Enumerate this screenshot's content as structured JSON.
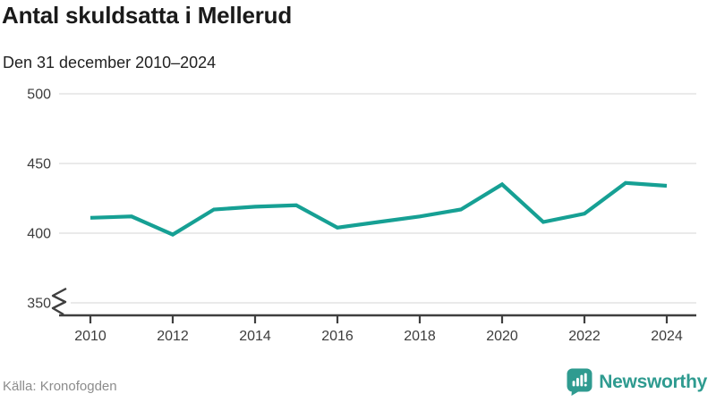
{
  "header": {
    "title": "Antal skuldsatta i Mellerud",
    "subtitle": "Den 31 december 2010–2024"
  },
  "chart_data": {
    "type": "line",
    "title": "Antal skuldsatta i Mellerud",
    "subtitle": "Den 31 december 2010–2024",
    "x": [
      2010,
      2011,
      2012,
      2013,
      2014,
      2015,
      2016,
      2017,
      2018,
      2019,
      2020,
      2021,
      2022,
      2023,
      2024
    ],
    "series": [
      {
        "name": "Antal skuldsatta",
        "values": [
          411,
          412,
          399,
          417,
          419,
          420,
          404,
          408,
          412,
          417,
          435,
          408,
          414,
          436,
          434
        ]
      }
    ],
    "xlabel": "",
    "ylabel": "",
    "ylim": [
      350,
      500
    ],
    "yticks": [
      350,
      400,
      450,
      500
    ],
    "xticks": [
      2010,
      2012,
      2014,
      2016,
      2018,
      2020,
      2022,
      2024
    ],
    "grid": true,
    "axis_break_at_bottom": true,
    "legend": "none"
  },
  "footer": {
    "source": "Källa: Kronofogden",
    "brand": "Newsworthy"
  },
  "colors": {
    "line": "#16a094",
    "grid": "#e3e3e3",
    "axis": "#3f3f3f",
    "tick_text": "#3d3d3d",
    "title_text": "#1a1a1a",
    "source_text": "#8c8c8c",
    "brand_teal": "#2f9b90"
  }
}
